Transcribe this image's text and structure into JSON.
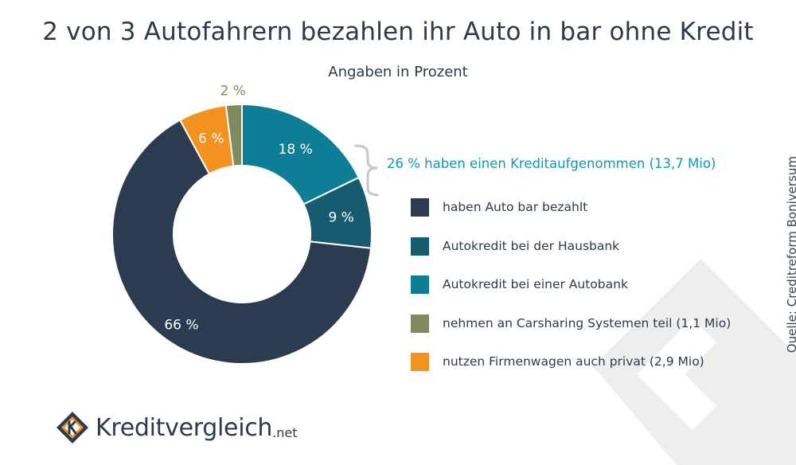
{
  "header": {
    "title": "2 von 3 Autofahrern bezahlen ihr Auto in bar ohne Kredit",
    "subtitle": "Angaben in Prozent"
  },
  "chart_data": {
    "type": "donut",
    "title": "2 von 3 Autofahrern bezahlen ihr Auto in bar ohne Kredit",
    "subtitle": "Angaben in Prozent",
    "unit": "%",
    "slices": [
      {
        "label": "Autokredit bei einer Autobank",
        "value": 18,
        "display": "18 %",
        "color": "#0e7d96"
      },
      {
        "label": "Autokredit bei der Hausbank",
        "value": 9,
        "display": "9 %",
        "color": "#165b70"
      },
      {
        "label": "haben Auto bar bezahlt",
        "value": 66,
        "display": "66 %",
        "color": "#2c3c50"
      },
      {
        "label": "nutzen Firmenwagen auch privat (2,9 Mio)",
        "value": 6,
        "display": "6 %",
        "color": "#f39221"
      },
      {
        "label": "nehmen an Carsharing Systemen teil (1,1 Mio)",
        "value": 2,
        "display": "2 %",
        "color": "#7e8b5c"
      }
    ],
    "bracket_annotation": "26 % haben einen Kreditaufgenommen (13,7 Mio)",
    "legend": {
      "position": "right",
      "items": [
        {
          "label": "haben Auto bar bezahlt",
          "color": "#2c3c50"
        },
        {
          "label": "Autokredit bei der Hausbank",
          "color": "#165b70"
        },
        {
          "label": "Autokredit bei einer Autobank",
          "color": "#0e7d96"
        },
        {
          "label": "nehmen an Carsharing Systemen teil (1,1 Mio)",
          "color": "#7e8b5c"
        },
        {
          "label": "nutzen Firmenwagen auch privat (2,9 Mio)",
          "color": "#f39221"
        }
      ]
    }
  },
  "source": "Quelle: Creditreform Boniversum",
  "logo": {
    "name": "Kreditvergleich",
    "suffix": ".net"
  },
  "colors": {
    "text": "#2c3a4c",
    "accent": "#1497b0",
    "watermark": "#ededed"
  }
}
